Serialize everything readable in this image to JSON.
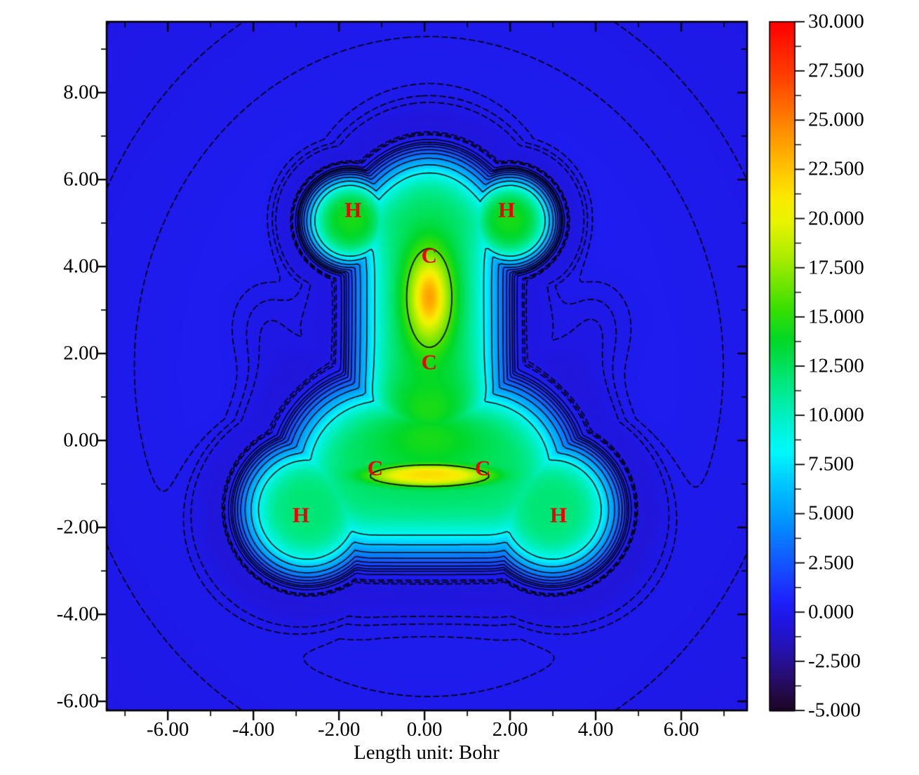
{
  "chart_data": {
    "type": "heatmap",
    "subtype": "filled-contour-map",
    "title": "",
    "xlabel": "Length unit: Bohr",
    "ylabel": "",
    "x_range": [
      -7.43,
      7.54
    ],
    "y_range": [
      -6.21,
      9.63
    ],
    "grid": false,
    "x_axis": {
      "major": [
        -6,
        -4,
        -2,
        0,
        2,
        4,
        6
      ],
      "labels": [
        "-6.00",
        "-4.00",
        "-2.00",
        "0.00",
        "2.00",
        "4.00",
        "6.00"
      ],
      "minor": [
        -7,
        -5,
        -3,
        -1,
        1,
        3,
        5,
        7
      ]
    },
    "y_axis": {
      "major": [
        8,
        6,
        4,
        2,
        0,
        -2,
        -4,
        -6
      ],
      "labels": [
        "8.00",
        "6.00",
        "4.00",
        "2.00",
        "0.00",
        "-2.00",
        "-4.00",
        "-6.00"
      ],
      "minor": [
        9,
        7,
        5,
        3,
        1,
        -1,
        -3,
        -5
      ]
    },
    "colorbar": {
      "min": -5,
      "max": 30,
      "major_step": 2.5,
      "minor_step": 1.25,
      "labels": [
        "30.000",
        "27.500",
        "25.000",
        "22.500",
        "20.000",
        "17.500",
        "15.000",
        "12.500",
        "10.000",
        "7.500",
        "5.000",
        "2.500",
        "0.000",
        "-2.500",
        "-5.000"
      ]
    },
    "colormap_stops": [
      [
        30.0,
        [
          255,
          0,
          0
        ]
      ],
      [
        27.0,
        [
          255,
          70,
          0
        ]
      ],
      [
        24.6,
        [
          255,
          140,
          0
        ]
      ],
      [
        22.4,
        [
          255,
          200,
          0
        ]
      ],
      [
        21.0,
        [
          250,
          235,
          0
        ]
      ],
      [
        19.8,
        [
          232,
          244,
          0
        ]
      ],
      [
        18.0,
        [
          170,
          236,
          0
        ]
      ],
      [
        15.5,
        [
          60,
          224,
          0
        ]
      ],
      [
        13.8,
        [
          0,
          216,
          40
        ]
      ],
      [
        11.6,
        [
          0,
          232,
          130
        ]
      ],
      [
        9.6,
        [
          0,
          242,
          210
        ]
      ],
      [
        8.2,
        [
          0,
          250,
          250
        ]
      ],
      [
        6.4,
        [
          0,
          195,
          255
        ]
      ],
      [
        4.8,
        [
          0,
          153,
          255
        ]
      ],
      [
        3.2,
        [
          15,
          106,
          255
        ]
      ],
      [
        1.6,
        [
          26,
          60,
          255
        ]
      ],
      [
        0.5,
        [
          29,
          32,
          250
        ]
      ],
      [
        -0.5,
        [
          31,
          22,
          224
        ]
      ],
      [
        -1.8,
        [
          38,
          18,
          180
        ]
      ],
      [
        -3.2,
        [
          39,
          14,
          116
        ]
      ],
      [
        -4.3,
        [
          35,
          9,
          64
        ]
      ],
      [
        -5.0,
        [
          27,
          5,
          38
        ]
      ]
    ],
    "atoms": [
      {
        "el": "H",
        "x": -1.67,
        "y": 5.29
      },
      {
        "el": "H",
        "x": 1.92,
        "y": 5.29
      },
      {
        "el": "C",
        "x": 0.11,
        "y": 4.24
      },
      {
        "el": "C",
        "x": 0.11,
        "y": 1.79
      },
      {
        "el": "C",
        "x": -1.15,
        "y": -0.65
      },
      {
        "el": "C",
        "x": 1.36,
        "y": -0.65
      },
      {
        "el": "H",
        "x": -2.89,
        "y": -1.73
      },
      {
        "el": "H",
        "x": 3.13,
        "y": -1.73
      }
    ],
    "atom_color": "#f00000",
    "contours": {
      "solid": [
        0.5,
        0.95,
        1.3,
        1.8,
        2.5,
        3.4,
        4.7,
        6.5,
        8.5,
        16
      ],
      "dashed": [
        -0.3,
        -0.18,
        -0.05
      ]
    },
    "field": {
      "skeleton": [
        {
          "a": [
            0.11,
            1.3
          ],
          "b": [
            0.11,
            4.9
          ],
          "w": 1.7
        },
        {
          "a": [
            -1.75,
            5.05
          ],
          "b": [
            -1.75,
            5.05
          ],
          "w": 1.05
        },
        {
          "a": [
            2.0,
            5.05
          ],
          "b": [
            2.0,
            5.05
          ],
          "w": 1.05
        },
        {
          "a": [
            -1.2,
            -0.7
          ],
          "b": [
            1.45,
            -0.7
          ],
          "w": 2.0
        },
        {
          "a": [
            -2.75,
            -1.6
          ],
          "b": [
            -2.75,
            -1.6
          ],
          "w": 1.55
        },
        {
          "a": [
            3.0,
            -1.6
          ],
          "b": [
            3.0,
            -1.6
          ],
          "w": 1.55
        }
      ],
      "plateau": {
        "amp": 14.2,
        "p": 4
      },
      "halo": {
        "amp": -2.5,
        "scale": 1.45,
        "p": 4
      },
      "gaussians": [
        {
          "c": [
            0.11,
            3.3
          ],
          "s": [
            0.55,
            1.15
          ],
          "a": 10.0,
          "p": 2
        },
        {
          "c": [
            0.12,
            -0.82
          ],
          "s": [
            1.5,
            0.25
          ],
          "a": 7.6,
          "p": 4
        },
        {
          "c": [
            0.1,
            0.35
          ],
          "s": [
            1.35,
            1.1
          ],
          "a": 2.8,
          "p": 2
        },
        {
          "c": [
            -1.7,
            5.1
          ],
          "s": [
            0.75,
            0.7
          ],
          "a": 2.5,
          "p": 2
        },
        {
          "c": [
            2.0,
            5.1
          ],
          "s": [
            0.75,
            0.7
          ],
          "a": 2.5,
          "p": 2
        },
        {
          "c": [
            -3.55,
            2.55
          ],
          "s": [
            1.0,
            1.3
          ],
          "a": -0.55,
          "p": 2
        },
        {
          "c": [
            3.85,
            2.55
          ],
          "s": [
            1.0,
            1.3
          ],
          "a": -0.55,
          "p": 2
        }
      ],
      "background": {
        "base": -0.42,
        "amp": 0.9,
        "c": [
          0.1,
          1.7
        ],
        "s": [
          7.3,
          8.05
        ]
      },
      "fill_boost": {
        "threshold": 19,
        "factor": 1.55
      }
    }
  }
}
